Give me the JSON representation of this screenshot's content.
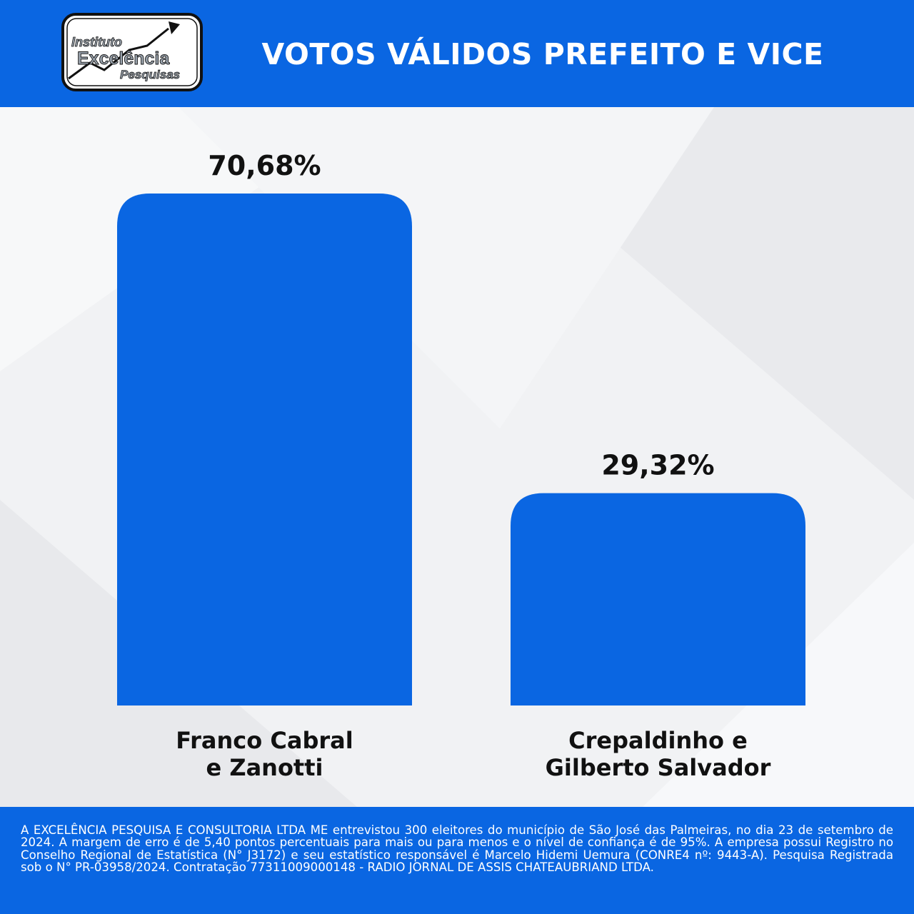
{
  "header": {
    "title": "VOTOS VÁLIDOS PREFEITO E VICE",
    "logo": {
      "line1": "Instituto",
      "line2": "Excelência",
      "line3": "Pesquisas",
      "icon": "rising-arrow-icon"
    }
  },
  "chart_data": {
    "type": "bar",
    "title": "VOTOS VÁLIDOS PREFEITO E VICE",
    "categories": [
      [
        "Franco Cabral",
        "e Zanotti"
      ],
      [
        "Crepaldinho e",
        "Gilberto Salvador"
      ]
    ],
    "values": [
      70.68,
      29.32
    ],
    "value_labels": [
      "70,68%",
      "29,32%"
    ],
    "ylim": [
      0,
      70.68
    ],
    "grid": false,
    "legend": "none",
    "bar_color": "#0a66e2"
  },
  "footer": {
    "text": "A EXCELÊNCIA PESQUISA E CONSULTORIA LTDA ME entrevistou 300 eleitores do município de São José das Palmeiras, no dia 23 de setembro de 2024. A margem de erro é de 5,40 pontos percentuais para mais ou para menos e o nível de confiança é de 95%. A empresa possui Registro no Conselho Regional de Estatística (N° J3172) e seu estatístico responsável é Marcelo Hidemi Uemura (CONRE4 nº: 9443-A). Pesquisa Registrada sob o N° PR-03958/2024. Contratação 77311009000148 - RADIO JORNAL DE ASSIS CHATEAUBRIAND LTDA."
  },
  "colors": {
    "brand_blue": "#0a66e2",
    "background": "#f1f2f4",
    "text_dark": "#111111"
  }
}
